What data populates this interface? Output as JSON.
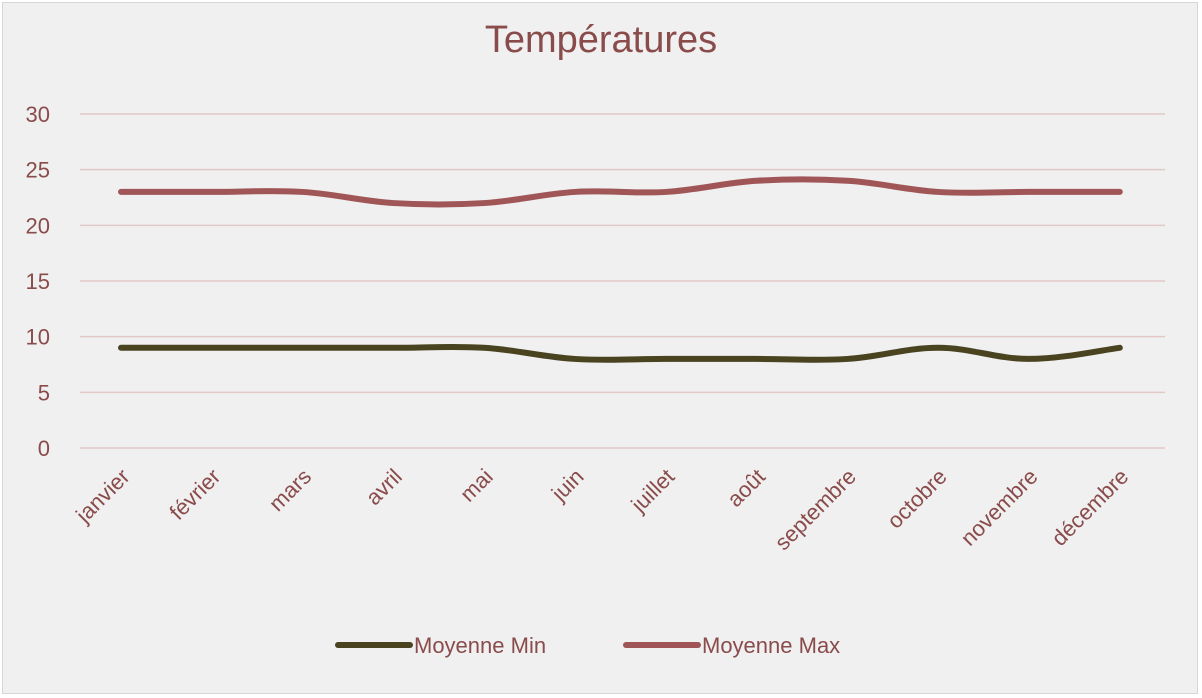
{
  "chart_data": {
    "type": "line",
    "title": "Températures",
    "categories": [
      "janvier",
      "février",
      "mars",
      "avril",
      "mai",
      "juin",
      "juillet",
      "août",
      "septembre",
      "octobre",
      "novembre",
      "décembre"
    ],
    "series": [
      {
        "name": "Moyenne Min",
        "color": "#4a4320",
        "values": [
          9,
          9,
          9,
          9,
          9,
          8,
          8,
          8,
          8,
          9,
          8,
          9
        ]
      },
      {
        "name": "Moyenne Max",
        "color": "#a05656",
        "values": [
          23,
          23,
          23,
          22,
          22,
          23,
          23,
          24,
          24,
          23,
          23,
          23
        ]
      }
    ],
    "ylim": [
      0,
      30
    ],
    "yticks": [
      0,
      5,
      10,
      15,
      20,
      25,
      30
    ],
    "grid": true,
    "gridColor": "#e3c8c8",
    "legend_position": "bottom"
  }
}
